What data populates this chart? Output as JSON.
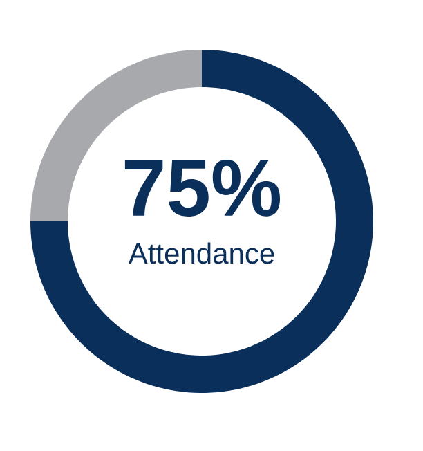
{
  "chart_data": {
    "type": "donut",
    "categories": [
      "Attendance",
      null
    ],
    "values": [
      75,
      25
    ],
    "colors": [
      "#0b2f5b",
      "#a8a9ad"
    ],
    "value_labels": [
      "75%",
      null
    ]
  }
}
